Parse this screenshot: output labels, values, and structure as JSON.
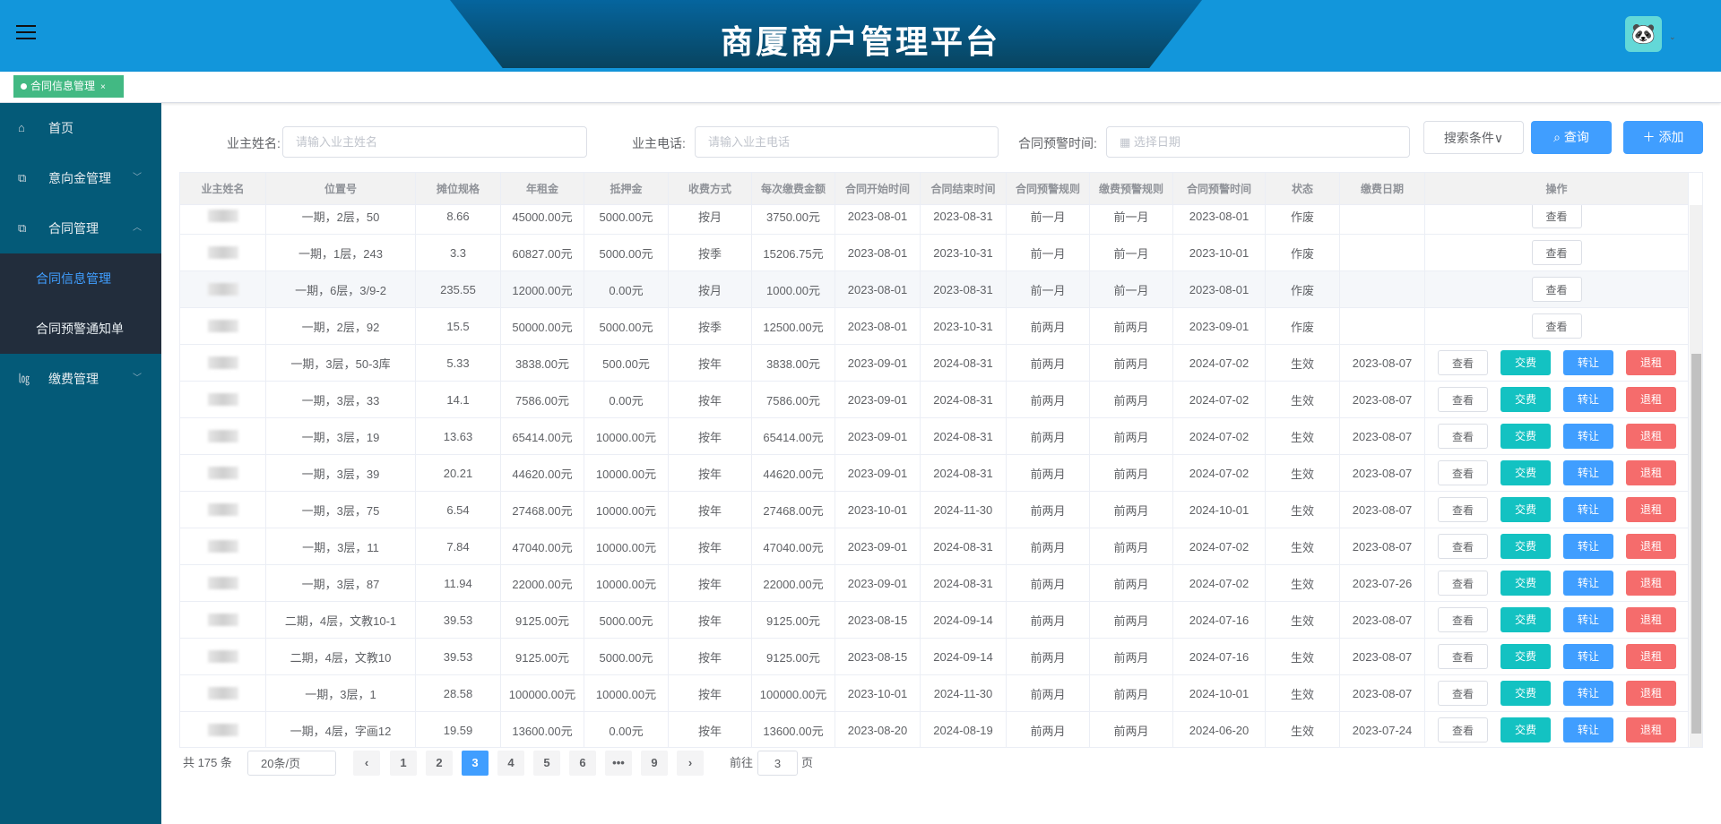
{
  "header": {
    "title": "商厦商户管理平台",
    "menu_icon": "hamburger-icon",
    "avatar_glyph": "🐼",
    "caret": "⌄"
  },
  "tabs": [
    {
      "label": "合同信息管理",
      "close": "×"
    }
  ],
  "sidebar": {
    "items": [
      {
        "label": "首页",
        "icon": "home-icon",
        "glyph": "⌂"
      },
      {
        "label": "意向金管理",
        "icon": "copy-icon",
        "glyph": "⧉",
        "chevron": "﹀"
      },
      {
        "label": "合同管理",
        "icon": "copy-icon",
        "glyph": "⧉",
        "chevron": "︿"
      },
      {
        "label": "缴费管理",
        "icon": "chart-icon",
        "glyph": "㏒",
        "chevron": "﹀"
      }
    ],
    "sub": [
      {
        "label": "合同信息管理",
        "active": true
      },
      {
        "label": "合同预警通知单"
      }
    ]
  },
  "search": {
    "owner_label": "业主姓名:",
    "owner_placeholder": "请输入业主姓名",
    "phone_label": "业主电话:",
    "phone_placeholder": "请输入业主电话",
    "date_label": "合同预警时间:",
    "date_placeholder": "选择日期",
    "conditions": "搜索条件∨",
    "query": "查询",
    "add": "添加"
  },
  "table": {
    "headers": [
      "业主姓名",
      "位置号",
      "摊位规格",
      "年租金",
      "抵押金",
      "收费方式",
      "每次缴费金额",
      "合同开始时间",
      "合同结束时间",
      "合同预警规则",
      "缴费预警规则",
      "合同预警时间",
      "状态",
      "缴费日期",
      "操作"
    ],
    "actions": {
      "view": "查看",
      "pay": "交费",
      "transfer": "转让",
      "cancel": "退租"
    },
    "rows": [
      [
        "",
        "一期，2层，50",
        "8.66",
        "45000.00元",
        "5000.00元",
        "按月",
        "3750.00元",
        "2023-08-01",
        "2023-08-31",
        "前一月",
        "前一月",
        "2023-08-01",
        "作废",
        ""
      ],
      [
        "",
        "一期，1层，243",
        "3.3",
        "60827.00元",
        "5000.00元",
        "按季",
        "15206.75元",
        "2023-08-01",
        "2023-10-31",
        "前一月",
        "前一月",
        "2023-10-01",
        "作废",
        ""
      ],
      [
        "",
        "一期，6层，3/9-2",
        "235.55",
        "12000.00元",
        "0.00元",
        "按月",
        "1000.00元",
        "2023-08-01",
        "2023-08-31",
        "前一月",
        "前一月",
        "2023-08-01",
        "作废",
        ""
      ],
      [
        "",
        "一期，2层，92",
        "15.5",
        "50000.00元",
        "5000.00元",
        "按季",
        "12500.00元",
        "2023-08-01",
        "2023-10-31",
        "前两月",
        "前两月",
        "2023-09-01",
        "作废",
        ""
      ],
      [
        "",
        "一期，3层，50-3库",
        "5.33",
        "3838.00元",
        "500.00元",
        "按年",
        "3838.00元",
        "2023-09-01",
        "2024-08-31",
        "前两月",
        "前两月",
        "2024-07-02",
        "生效",
        "2023-08-07"
      ],
      [
        "",
        "一期，3层，33",
        "14.1",
        "7586.00元",
        "0.00元",
        "按年",
        "7586.00元",
        "2023-09-01",
        "2024-08-31",
        "前两月",
        "前两月",
        "2024-07-02",
        "生效",
        "2023-08-07"
      ],
      [
        "",
        "一期，3层，19",
        "13.63",
        "65414.00元",
        "10000.00元",
        "按年",
        "65414.00元",
        "2023-09-01",
        "2024-08-31",
        "前两月",
        "前两月",
        "2024-07-02",
        "生效",
        "2023-08-07"
      ],
      [
        "",
        "一期，3层，39",
        "20.21",
        "44620.00元",
        "10000.00元",
        "按年",
        "44620.00元",
        "2023-09-01",
        "2024-08-31",
        "前两月",
        "前两月",
        "2024-07-02",
        "生效",
        "2023-08-07"
      ],
      [
        "",
        "一期，3层，75",
        "6.54",
        "27468.00元",
        "10000.00元",
        "按年",
        "27468.00元",
        "2023-10-01",
        "2024-11-30",
        "前两月",
        "前两月",
        "2024-10-01",
        "生效",
        "2023-08-07"
      ],
      [
        "",
        "一期，3层，11",
        "7.84",
        "47040.00元",
        "10000.00元",
        "按年",
        "47040.00元",
        "2023-09-01",
        "2024-08-31",
        "前两月",
        "前两月",
        "2024-07-02",
        "生效",
        "2023-08-07"
      ],
      [
        "",
        "一期，3层，87",
        "11.94",
        "22000.00元",
        "10000.00元",
        "按年",
        "22000.00元",
        "2023-09-01",
        "2024-08-31",
        "前两月",
        "前两月",
        "2024-07-02",
        "生效",
        "2023-07-26"
      ],
      [
        "",
        "二期，4层，文教10-1",
        "39.53",
        "9125.00元",
        "5000.00元",
        "按年",
        "9125.00元",
        "2023-08-15",
        "2024-09-14",
        "前两月",
        "前两月",
        "2024-07-16",
        "生效",
        "2023-08-07"
      ],
      [
        "",
        "二期，4层，文教10",
        "39.53",
        "9125.00元",
        "5000.00元",
        "按年",
        "9125.00元",
        "2023-08-15",
        "2024-09-14",
        "前两月",
        "前两月",
        "2024-07-16",
        "生效",
        "2023-08-07"
      ],
      [
        "",
        "一期，3层，1",
        "28.58",
        "100000.00元",
        "10000.00元",
        "按年",
        "100000.00元",
        "2023-10-01",
        "2024-11-30",
        "前两月",
        "前两月",
        "2024-10-01",
        "生效",
        "2023-08-07"
      ],
      [
        "",
        "一期，4层，字画12",
        "19.59",
        "13600.00元",
        "0.00元",
        "按年",
        "13600.00元",
        "2023-08-20",
        "2024-08-19",
        "前两月",
        "前两月",
        "2024-06-20",
        "生效",
        "2023-07-24"
      ]
    ]
  },
  "pagination": {
    "total": "共 175 条",
    "page_size": "20条/页",
    "pages": [
      "1",
      "2",
      "3",
      "4",
      "5",
      "6",
      "•••",
      "9"
    ],
    "current": "3",
    "prev": "‹",
    "next": "›",
    "goto_label": "前往",
    "goto_value": "3",
    "goto_suffix": "页"
  },
  "colors": {
    "header": "#1296db",
    "sidebar": "#045a78",
    "submenu": "#222d3c",
    "primary": "#409eff",
    "pay": "#13c2c2",
    "danger": "#f56c6c",
    "tag": "#42b983"
  }
}
